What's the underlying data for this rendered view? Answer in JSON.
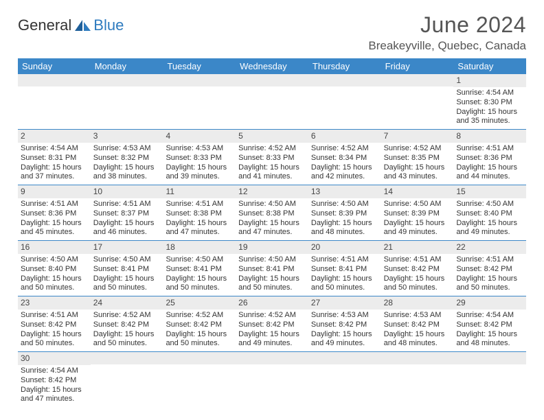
{
  "logo": {
    "text1": "General",
    "text2": "Blue"
  },
  "title": "June 2024",
  "location": "Breakeyville, Quebec, Canada",
  "colors": {
    "header_bg": "#3b87c8",
    "daynum_bg": "#ececec",
    "row_border": "#3b87c8",
    "text": "#333333",
    "title_text": "#555555"
  },
  "dayNames": [
    "Sunday",
    "Monday",
    "Tuesday",
    "Wednesday",
    "Thursday",
    "Friday",
    "Saturday"
  ],
  "weeks": [
    [
      null,
      null,
      null,
      null,
      null,
      null,
      {
        "n": "1",
        "sr": "4:54 AM",
        "ss": "8:30 PM",
        "dl": "15 hours and 35 minutes."
      }
    ],
    [
      {
        "n": "2",
        "sr": "4:54 AM",
        "ss": "8:31 PM",
        "dl": "15 hours and 37 minutes."
      },
      {
        "n": "3",
        "sr": "4:53 AM",
        "ss": "8:32 PM",
        "dl": "15 hours and 38 minutes."
      },
      {
        "n": "4",
        "sr": "4:53 AM",
        "ss": "8:33 PM",
        "dl": "15 hours and 39 minutes."
      },
      {
        "n": "5",
        "sr": "4:52 AM",
        "ss": "8:33 PM",
        "dl": "15 hours and 41 minutes."
      },
      {
        "n": "6",
        "sr": "4:52 AM",
        "ss": "8:34 PM",
        "dl": "15 hours and 42 minutes."
      },
      {
        "n": "7",
        "sr": "4:52 AM",
        "ss": "8:35 PM",
        "dl": "15 hours and 43 minutes."
      },
      {
        "n": "8",
        "sr": "4:51 AM",
        "ss": "8:36 PM",
        "dl": "15 hours and 44 minutes."
      }
    ],
    [
      {
        "n": "9",
        "sr": "4:51 AM",
        "ss": "8:36 PM",
        "dl": "15 hours and 45 minutes."
      },
      {
        "n": "10",
        "sr": "4:51 AM",
        "ss": "8:37 PM",
        "dl": "15 hours and 46 minutes."
      },
      {
        "n": "11",
        "sr": "4:51 AM",
        "ss": "8:38 PM",
        "dl": "15 hours and 47 minutes."
      },
      {
        "n": "12",
        "sr": "4:50 AM",
        "ss": "8:38 PM",
        "dl": "15 hours and 47 minutes."
      },
      {
        "n": "13",
        "sr": "4:50 AM",
        "ss": "8:39 PM",
        "dl": "15 hours and 48 minutes."
      },
      {
        "n": "14",
        "sr": "4:50 AM",
        "ss": "8:39 PM",
        "dl": "15 hours and 49 minutes."
      },
      {
        "n": "15",
        "sr": "4:50 AM",
        "ss": "8:40 PM",
        "dl": "15 hours and 49 minutes."
      }
    ],
    [
      {
        "n": "16",
        "sr": "4:50 AM",
        "ss": "8:40 PM",
        "dl": "15 hours and 50 minutes."
      },
      {
        "n": "17",
        "sr": "4:50 AM",
        "ss": "8:41 PM",
        "dl": "15 hours and 50 minutes."
      },
      {
        "n": "18",
        "sr": "4:50 AM",
        "ss": "8:41 PM",
        "dl": "15 hours and 50 minutes."
      },
      {
        "n": "19",
        "sr": "4:50 AM",
        "ss": "8:41 PM",
        "dl": "15 hours and 50 minutes."
      },
      {
        "n": "20",
        "sr": "4:51 AM",
        "ss": "8:41 PM",
        "dl": "15 hours and 50 minutes."
      },
      {
        "n": "21",
        "sr": "4:51 AM",
        "ss": "8:42 PM",
        "dl": "15 hours and 50 minutes."
      },
      {
        "n": "22",
        "sr": "4:51 AM",
        "ss": "8:42 PM",
        "dl": "15 hours and 50 minutes."
      }
    ],
    [
      {
        "n": "23",
        "sr": "4:51 AM",
        "ss": "8:42 PM",
        "dl": "15 hours and 50 minutes."
      },
      {
        "n": "24",
        "sr": "4:52 AM",
        "ss": "8:42 PM",
        "dl": "15 hours and 50 minutes."
      },
      {
        "n": "25",
        "sr": "4:52 AM",
        "ss": "8:42 PM",
        "dl": "15 hours and 50 minutes."
      },
      {
        "n": "26",
        "sr": "4:52 AM",
        "ss": "8:42 PM",
        "dl": "15 hours and 49 minutes."
      },
      {
        "n": "27",
        "sr": "4:53 AM",
        "ss": "8:42 PM",
        "dl": "15 hours and 49 minutes."
      },
      {
        "n": "28",
        "sr": "4:53 AM",
        "ss": "8:42 PM",
        "dl": "15 hours and 48 minutes."
      },
      {
        "n": "29",
        "sr": "4:54 AM",
        "ss": "8:42 PM",
        "dl": "15 hours and 48 minutes."
      }
    ],
    [
      {
        "n": "30",
        "sr": "4:54 AM",
        "ss": "8:42 PM",
        "dl": "15 hours and 47 minutes."
      },
      null,
      null,
      null,
      null,
      null,
      null
    ]
  ],
  "labels": {
    "sunrise": "Sunrise:",
    "sunset": "Sunset:",
    "daylight": "Daylight:"
  }
}
